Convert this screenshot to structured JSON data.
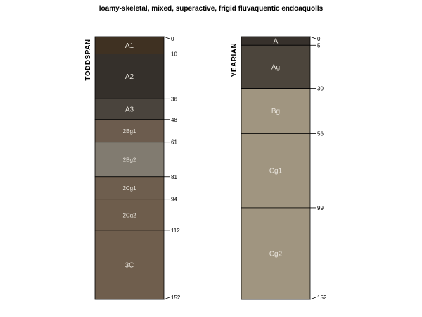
{
  "title": "loamy-skeletal, mixed, superactive, frigid fluvaquentic endoaquolls",
  "chart_data": {
    "type": "soil-profile",
    "max_depth": 152,
    "profiles": [
      {
        "name": "TODDSPAN",
        "horizons": [
          {
            "name": "A1",
            "top": 0,
            "bottom": 10,
            "color": "#3f3122"
          },
          {
            "name": "A2",
            "top": 10,
            "bottom": 36,
            "color": "#35302b"
          },
          {
            "name": "A3",
            "top": 36,
            "bottom": 48,
            "color": "#4a443d"
          },
          {
            "name": "2Bg1",
            "top": 48,
            "bottom": 61,
            "color": "#6c5c4e"
          },
          {
            "name": "2Bg2",
            "top": 61,
            "bottom": 81,
            "color": "#817b70"
          },
          {
            "name": "2Cg1",
            "top": 81,
            "bottom": 94,
            "color": "#6e5e4e"
          },
          {
            "name": "2Cg2",
            "top": 94,
            "bottom": 112,
            "color": "#6e5d4c"
          },
          {
            "name": "3C",
            "top": 112,
            "bottom": 152,
            "color": "#6f5e4d"
          }
        ]
      },
      {
        "name": "YEARIAN",
        "horizons": [
          {
            "name": "A",
            "top": 0,
            "bottom": 5,
            "color": "#37312c"
          },
          {
            "name": "Ag",
            "top": 5,
            "bottom": 30,
            "color": "#4c453c"
          },
          {
            "name": "Bg",
            "top": 30,
            "bottom": 56,
            "color": "#a09580"
          },
          {
            "name": "Cg1",
            "top": 56,
            "bottom": 99,
            "color": "#a09580"
          },
          {
            "name": "Cg2",
            "top": 99,
            "bottom": 152,
            "color": "#a09580"
          }
        ]
      }
    ]
  }
}
